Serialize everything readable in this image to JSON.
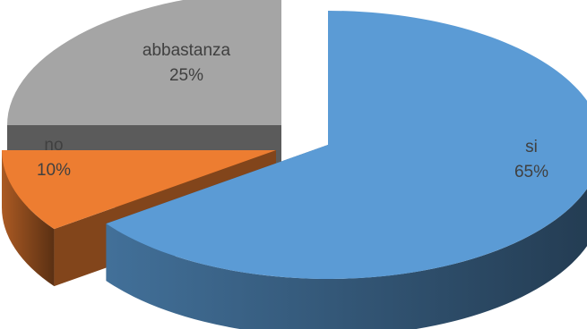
{
  "chart_data": {
    "type": "pie",
    "style": "3d-exploded",
    "title": "",
    "slices": [
      {
        "label": "si",
        "value": 65,
        "value_label": "65%",
        "color": "#5b9bd5"
      },
      {
        "label": "no",
        "value": 10,
        "value_label": "10%",
        "color": "#ed7d31"
      },
      {
        "label": "abbastanza",
        "value": 25,
        "value_label": "25%",
        "color": "#a5a5a5"
      }
    ],
    "legend": "none"
  }
}
